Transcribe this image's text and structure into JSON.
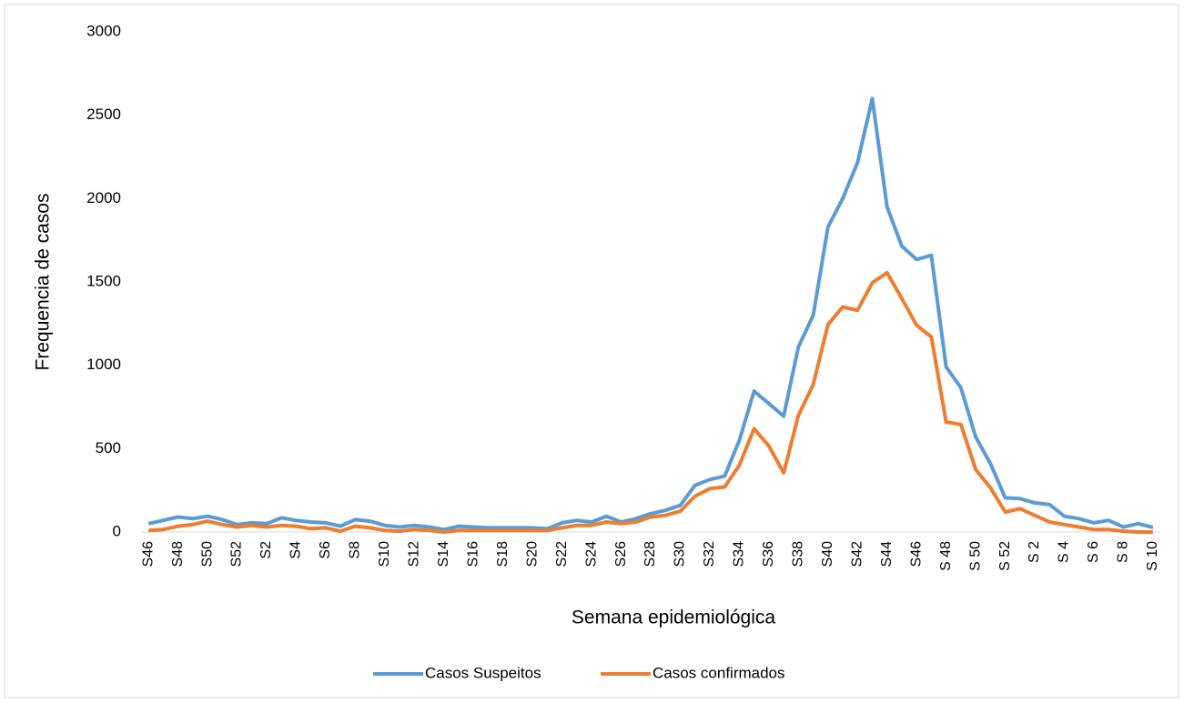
{
  "chart_data": {
    "type": "line",
    "x_label": "Semana epidemiológica",
    "y_label": "Frequencia de casos",
    "categories": [
      "S46",
      null,
      "S48",
      null,
      "S50",
      null,
      "S52",
      null,
      "S2",
      null,
      "S4",
      null,
      "S6",
      null,
      "S8",
      null,
      "S10",
      null,
      "S12",
      null,
      "S14",
      null,
      "S16",
      null,
      "S18",
      null,
      "S20",
      null,
      "S22",
      null,
      "S24",
      null,
      "S26",
      null,
      "S28",
      null,
      "S30",
      null,
      "S32",
      null,
      "S34",
      null,
      "S36",
      null,
      "S38",
      null,
      "S40",
      null,
      "S42",
      null,
      "S44",
      null,
      "S46",
      null,
      "S 48",
      null,
      "S 50",
      null,
      "S 52",
      null,
      "S 2",
      null,
      "S 4",
      null,
      "S 6",
      null,
      "S 8",
      null,
      "S 10"
    ],
    "series": [
      {
        "name": "Casos Suspeitos",
        "color": "#5b9bd5",
        "values": [
          50,
          70,
          90,
          80,
          95,
          75,
          45,
          55,
          50,
          85,
          70,
          60,
          55,
          35,
          75,
          65,
          40,
          30,
          40,
          30,
          15,
          35,
          30,
          25,
          25,
          25,
          25,
          20,
          55,
          70,
          60,
          95,
          60,
          80,
          110,
          130,
          160,
          280,
          315,
          335,
          550,
          845,
          770,
          695,
          1110,
          1300,
          1830,
          2000,
          2215,
          2600,
          1950,
          1715,
          1635,
          1660,
          990,
          865,
          570,
          410,
          205,
          200,
          175,
          165,
          95,
          80,
          55,
          70,
          30,
          50,
          28
        ]
      },
      {
        "name": "Casos confirmados",
        "color": "#ed7d31",
        "values": [
          10,
          15,
          35,
          45,
          65,
          45,
          30,
          40,
          30,
          40,
          35,
          20,
          25,
          5,
          35,
          25,
          10,
          5,
          15,
          10,
          0,
          10,
          10,
          10,
          10,
          10,
          10,
          10,
          25,
          40,
          40,
          60,
          50,
          60,
          90,
          100,
          125,
          215,
          260,
          270,
          400,
          620,
          515,
          355,
          700,
          885,
          1245,
          1350,
          1330,
          1495,
          1555,
          1400,
          1240,
          1170,
          660,
          645,
          375,
          265,
          120,
          140,
          100,
          60,
          45,
          30,
          15,
          15,
          5,
          0,
          0
        ]
      }
    ],
    "ylim": [
      0,
      3000
    ],
    "yticks": [
      0,
      500,
      1000,
      1500,
      2000,
      2500,
      3000
    ],
    "grid": false,
    "legend": "bottom"
  }
}
